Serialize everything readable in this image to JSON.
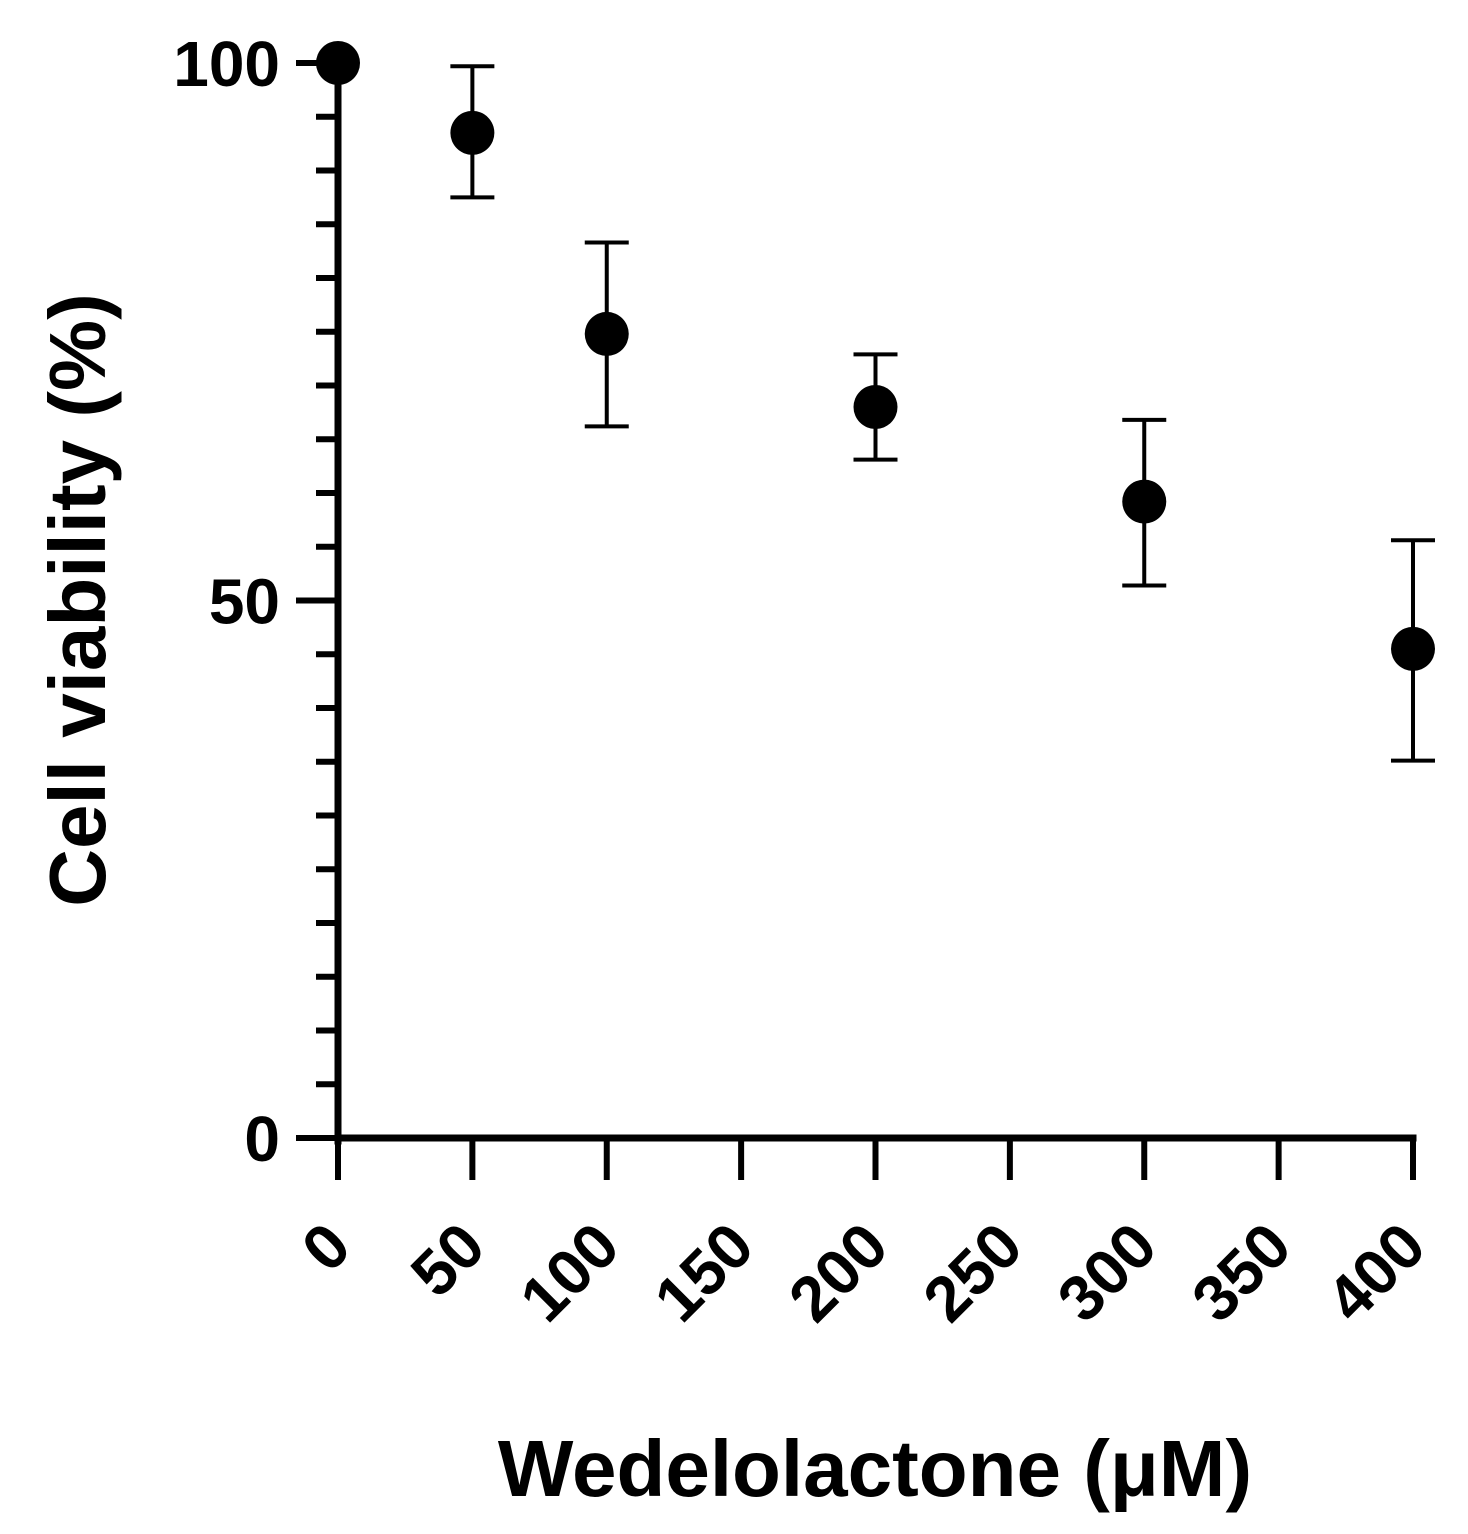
{
  "chart_data": {
    "type": "scatter",
    "title": "",
    "xlabel": "Wedelolactone (μM)",
    "ylabel": "Cell viability (%)",
    "xlim": [
      0,
      400
    ],
    "ylim": [
      0,
      100
    ],
    "x_ticks": [
      0,
      50,
      100,
      150,
      200,
      250,
      300,
      350,
      400
    ],
    "x_tick_labels": [
      "0",
      "50",
      "100",
      "150",
      "200",
      "250",
      "300",
      "350",
      "400"
    ],
    "y_major_ticks": [
      0,
      50,
      100
    ],
    "y_tick_labels": [
      "0",
      "50",
      "100"
    ],
    "y_minor_step": 5,
    "grid": false,
    "series": [
      {
        "name": "Cell viability",
        "x": [
          0,
          50,
          100,
          200,
          300,
          400
        ],
        "y": [
          100,
          93.5,
          74.8,
          68.0,
          59.2,
          45.5
        ],
        "error_low": [
          null,
          87.5,
          66.2,
          63.1,
          51.4,
          35.1
        ],
        "error_high": [
          null,
          99.7,
          83.3,
          72.9,
          66.8,
          55.6
        ],
        "color": "#000000"
      }
    ]
  }
}
